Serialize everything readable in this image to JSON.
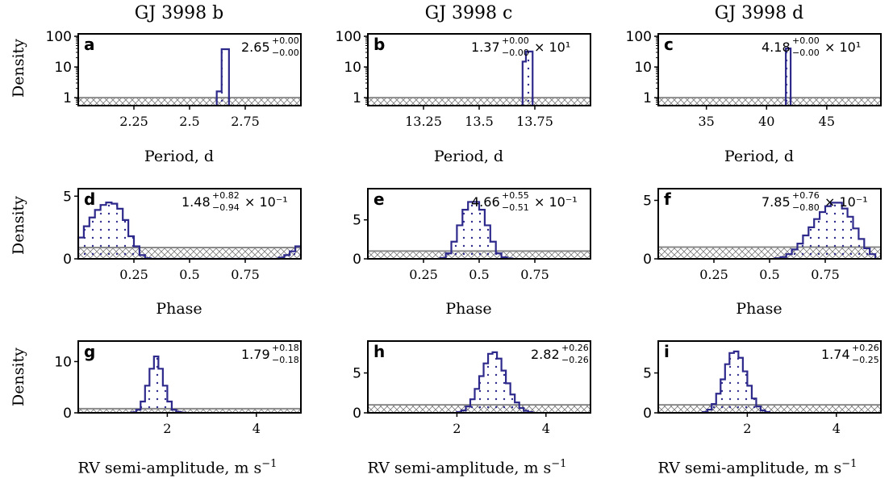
{
  "columns": [
    "GJ 3998 b",
    "GJ 3998 c",
    "GJ 3998 d"
  ],
  "ylabel": "Density",
  "xlabels": {
    "period": "Period, d",
    "phase": "Phase",
    "rv_lead": "RV semi-amplitude, m s",
    "rv_exp": "−1"
  },
  "colors": {
    "posterior": "#2e2a8c",
    "prior": "#8a8a8a",
    "frame": "#000000"
  },
  "chart_data": [
    {
      "id": "a",
      "type": "bar",
      "scale": "log",
      "xlim": [
        2.0,
        3.0
      ],
      "ylim": [
        0.55,
        120
      ],
      "xticks": [
        2.25,
        2.5,
        2.75
      ],
      "xtick_labels": [
        "2.25",
        "2.5",
        "2.75"
      ],
      "yticks": [
        1,
        10,
        100
      ],
      "ytick_labels": [
        "1",
        "10",
        "100"
      ],
      "label_main": "2.65",
      "label_sup": "+0.00",
      "label_sub": "−0.00",
      "label_pow": "",
      "prior_level": 1.0,
      "edges": [
        2.622,
        2.633,
        2.644,
        2.655,
        2.666,
        2.677
      ],
      "values": [
        1.6,
        1.6,
        38,
        38,
        38
      ]
    },
    {
      "id": "b",
      "type": "bar",
      "scale": "log",
      "xlim": [
        13.0,
        14.0
      ],
      "ylim": [
        0.55,
        120
      ],
      "xticks": [
        13.25,
        13.5,
        13.75
      ],
      "xtick_labels": [
        "13.25",
        "13.5",
        "13.75"
      ],
      "yticks": [
        1,
        10,
        100
      ],
      "ytick_labels": [
        "1",
        "10",
        "100"
      ],
      "label_main": "1.37",
      "label_sup": "+0.00",
      "label_sub": "−0.00",
      "label_pow": "× 10¹",
      "prior_level": 1.0,
      "edges": [
        13.695,
        13.71,
        13.725,
        13.74
      ],
      "values": [
        15,
        32,
        32
      ]
    },
    {
      "id": "c",
      "type": "bar",
      "scale": "log",
      "xlim": [
        31.0,
        49.5
      ],
      "ylim": [
        0.55,
        120
      ],
      "xticks": [
        35,
        40,
        45
      ],
      "xtick_labels": [
        "35",
        "40",
        "45"
      ],
      "yticks": [
        1,
        10,
        100
      ],
      "ytick_labels": [
        "1",
        "10",
        "100"
      ],
      "label_main": "4.18",
      "label_sup": "+0.00",
      "label_sub": "−0.00",
      "label_pow": "× 10¹",
      "prior_level": 1.0,
      "edges": [
        41.6,
        41.8,
        42.0
      ],
      "values": [
        40,
        40
      ]
    },
    {
      "id": "d",
      "type": "bar",
      "scale": "linear",
      "xlim": [
        0,
        1
      ],
      "ylim": [
        0,
        5.6
      ],
      "xticks": [
        0.25,
        0.5,
        0.75
      ],
      "xtick_labels": [
        "0.25",
        "0.5",
        "0.75"
      ],
      "yticks": [
        0,
        5
      ],
      "ytick_labels": [
        "0",
        "5"
      ],
      "label_main": "1.48",
      "label_sup": "+0.82",
      "label_sub": "−0.94",
      "label_pow": "× 10⁻¹",
      "prior_level": 0.9,
      "edges": [
        0,
        0.025,
        0.05,
        0.075,
        0.1,
        0.125,
        0.15,
        0.175,
        0.2,
        0.225,
        0.25,
        0.275,
        0.3,
        0.325,
        0.9,
        0.925,
        0.95,
        0.975,
        1.0
      ],
      "values": [
        1.7,
        2.6,
        3.3,
        3.9,
        4.3,
        4.5,
        4.4,
        4.0,
        3.1,
        1.8,
        1.0,
        0.3,
        0.05,
        0,
        0.1,
        0.3,
        0.6,
        1.0
      ]
    },
    {
      "id": "e",
      "type": "bar",
      "scale": "linear",
      "xlim": [
        0,
        1
      ],
      "ylim": [
        0,
        9
      ],
      "xticks": [
        0.25,
        0.5,
        0.75
      ],
      "xtick_labels": [
        "0.25",
        "0.5",
        "0.75"
      ],
      "yticks": [
        0,
        5
      ],
      "ytick_labels": [
        "0",
        "5"
      ],
      "label_main": "4.66",
      "label_sup": "+0.55",
      "label_sub": "−0.51",
      "label_pow": "× 10⁻¹",
      "prior_level": 1.0,
      "edges": [
        0.325,
        0.35,
        0.375,
        0.4,
        0.425,
        0.45,
        0.475,
        0.5,
        0.525,
        0.55,
        0.575,
        0.6,
        0.625,
        0.65
      ],
      "values": [
        0.1,
        0.7,
        2.2,
        4.3,
        6.3,
        7.3,
        7.3,
        6.3,
        4.3,
        2.2,
        0.7,
        0.2,
        0.05
      ]
    },
    {
      "id": "f",
      "type": "bar",
      "scale": "linear",
      "xlim": [
        0,
        1
      ],
      "ylim": [
        0,
        6
      ],
      "xticks": [
        0.25,
        0.5,
        0.75
      ],
      "xtick_labels": [
        "0.25",
        "0.5",
        "0.75"
      ],
      "yticks": [
        0,
        5
      ],
      "ytick_labels": [
        "0",
        "5"
      ],
      "label_main": "7.85",
      "label_sup": "+0.76",
      "label_sub": "−0.80",
      "label_pow": "× 10⁻¹",
      "prior_level": 1.0,
      "edges": [
        0.525,
        0.55,
        0.575,
        0.6,
        0.625,
        0.65,
        0.675,
        0.7,
        0.725,
        0.75,
        0.775,
        0.8,
        0.825,
        0.85,
        0.875,
        0.9,
        0.925,
        0.95,
        0.975
      ],
      "values": [
        0.05,
        0.15,
        0.4,
        0.8,
        1.3,
        2.0,
        2.7,
        3.4,
        4.0,
        4.5,
        4.8,
        4.8,
        4.3,
        3.6,
        2.6,
        1.7,
        0.9,
        0.4
      ]
    },
    {
      "id": "g",
      "type": "bar",
      "scale": "linear",
      "xlim": [
        0,
        5
      ],
      "ylim": [
        0,
        14
      ],
      "xticks": [
        2,
        4
      ],
      "xtick_labels": [
        "2",
        "4"
      ],
      "yticks": [
        0,
        10
      ],
      "ytick_labels": [
        "0",
        "10"
      ],
      "label_main": "1.79",
      "label_sup": "+0.18",
      "label_sub": "−0.18",
      "label_pow": "",
      "prior_level": 0.8,
      "edges": [
        1.2,
        1.3,
        1.4,
        1.5,
        1.6,
        1.7,
        1.8,
        1.9,
        2.0,
        2.1,
        2.2,
        2.3,
        2.4
      ],
      "values": [
        0.1,
        0.6,
        2.2,
        5.3,
        8.6,
        11.0,
        8.6,
        5.3,
        2.2,
        0.6,
        0.2,
        0.05
      ]
    },
    {
      "id": "h",
      "type": "bar",
      "scale": "linear",
      "xlim": [
        0,
        5
      ],
      "ylim": [
        0,
        9
      ],
      "xticks": [
        2,
        4
      ],
      "xtick_labels": [
        "2",
        "4"
      ],
      "yticks": [
        0,
        5
      ],
      "ytick_labels": [
        "0",
        "5"
      ],
      "label_main": "2.82",
      "label_sup": "+0.26",
      "label_sub": "−0.26",
      "label_pow": "",
      "prior_level": 1.0,
      "edges": [
        2.0,
        2.1,
        2.2,
        2.3,
        2.4,
        2.5,
        2.6,
        2.7,
        2.8,
        2.9,
        3.0,
        3.1,
        3.2,
        3.3,
        3.4,
        3.5,
        3.6,
        3.7
      ],
      "values": [
        0.1,
        0.3,
        0.8,
        1.7,
        3.0,
        4.6,
        6.2,
        7.4,
        7.6,
        6.8,
        5.3,
        3.7,
        2.3,
        1.3,
        0.6,
        0.25,
        0.1
      ]
    },
    {
      "id": "i",
      "type": "bar",
      "scale": "linear",
      "xlim": [
        0,
        5
      ],
      "ylim": [
        0,
        9
      ],
      "xticks": [
        2,
        4
      ],
      "xtick_labels": [
        "2",
        "4"
      ],
      "yticks": [
        0,
        5
      ],
      "ytick_labels": [
        "0",
        "5"
      ],
      "label_main": "1.74",
      "label_sup": "+0.26",
      "label_sub": "−0.25",
      "label_pow": "",
      "prior_level": 1.0,
      "edges": [
        1.0,
        1.1,
        1.2,
        1.3,
        1.4,
        1.5,
        1.6,
        1.7,
        1.8,
        1.9,
        2.0,
        2.1,
        2.2,
        2.3,
        2.4,
        2.5
      ],
      "values": [
        0.1,
        0.4,
        1.1,
        2.4,
        4.2,
        6.1,
        7.5,
        7.7,
        6.9,
        5.2,
        3.4,
        1.8,
        0.8,
        0.3,
        0.1
      ]
    }
  ]
}
